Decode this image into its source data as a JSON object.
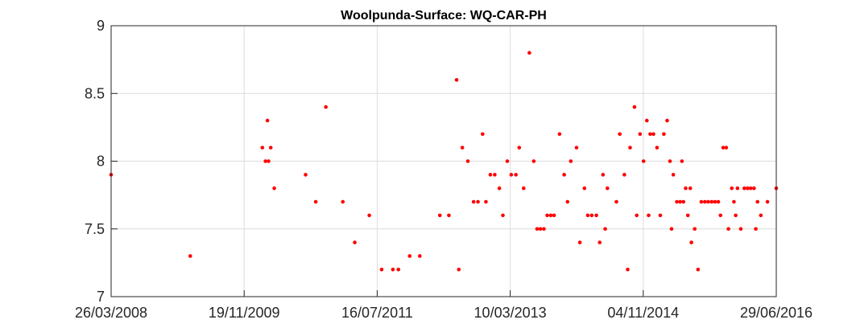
{
  "chart_data": {
    "type": "scatter",
    "title": "Woolpunda-Surface: WQ-CAR-PH",
    "xlabel": "",
    "ylabel": "",
    "x_ticks": [
      "26/03/2008",
      "19/11/2009",
      "16/07/2011",
      "10/03/2013",
      "04/11/2014",
      "29/06/2016"
    ],
    "y_ticks": [
      "7",
      "7.5",
      "8",
      "8.5",
      "9"
    ],
    "xlim": [
      "2008-03-26",
      "2016-06-29"
    ],
    "ylim": [
      7,
      9
    ],
    "grid": true,
    "marker_color": "#ff0000",
    "series": [
      {
        "points": [
          [
            "2008-03-26",
            7.9
          ],
          [
            "2009-03-20",
            7.3
          ],
          [
            "2010-02-10",
            8.1
          ],
          [
            "2010-02-24",
            8.0
          ],
          [
            "2010-03-05",
            8.3
          ],
          [
            "2010-03-10",
            8.0
          ],
          [
            "2010-03-20",
            8.1
          ],
          [
            "2010-04-05",
            7.8
          ],
          [
            "2010-08-25",
            7.9
          ],
          [
            "2010-10-10",
            7.7
          ],
          [
            "2010-11-25",
            8.4
          ],
          [
            "2011-02-10",
            7.7
          ],
          [
            "2011-04-05",
            7.4
          ],
          [
            "2011-06-10",
            7.6
          ],
          [
            "2011-08-05",
            7.2
          ],
          [
            "2011-09-25",
            7.2
          ],
          [
            "2011-10-20",
            7.2
          ],
          [
            "2011-12-10",
            7.3
          ],
          [
            "2012-01-25",
            7.3
          ],
          [
            "2012-04-25",
            7.6
          ],
          [
            "2012-06-05",
            7.6
          ],
          [
            "2012-07-10",
            8.6
          ],
          [
            "2012-07-20",
            7.2
          ],
          [
            "2012-08-05",
            8.1
          ],
          [
            "2012-08-30",
            8.0
          ],
          [
            "2012-09-25",
            7.7
          ],
          [
            "2012-10-15",
            7.7
          ],
          [
            "2012-11-05",
            8.2
          ],
          [
            "2012-11-20",
            7.7
          ],
          [
            "2012-12-10",
            7.9
          ],
          [
            "2012-12-30",
            7.9
          ],
          [
            "2013-01-20",
            7.8
          ],
          [
            "2013-02-05",
            7.6
          ],
          [
            "2013-02-25",
            8.0
          ],
          [
            "2013-03-15",
            7.9
          ],
          [
            "2013-04-05",
            7.9
          ],
          [
            "2013-04-20",
            8.1
          ],
          [
            "2013-05-10",
            7.8
          ],
          [
            "2013-06-05",
            8.8
          ],
          [
            "2013-06-25",
            8.0
          ],
          [
            "2013-07-10",
            7.5
          ],
          [
            "2013-07-25",
            7.5
          ],
          [
            "2013-08-10",
            7.5
          ],
          [
            "2013-08-25",
            7.6
          ],
          [
            "2013-09-10",
            7.6
          ],
          [
            "2013-09-25",
            7.6
          ],
          [
            "2013-10-20",
            8.2
          ],
          [
            "2013-11-10",
            7.9
          ],
          [
            "2013-11-25",
            7.7
          ],
          [
            "2013-12-10",
            8.0
          ],
          [
            "2014-01-05",
            8.1
          ],
          [
            "2014-01-20",
            7.4
          ],
          [
            "2014-02-10",
            7.8
          ],
          [
            "2014-02-25",
            7.6
          ],
          [
            "2014-03-15",
            7.6
          ],
          [
            "2014-04-05",
            7.6
          ],
          [
            "2014-04-20",
            7.4
          ],
          [
            "2014-05-05",
            7.9
          ],
          [
            "2014-05-25",
            7.8
          ],
          [
            "2014-07-05",
            7.7
          ],
          [
            "2014-07-20",
            8.2
          ],
          [
            "2014-08-10",
            7.9
          ],
          [
            "2014-09-05",
            8.1
          ],
          [
            "2014-09-25",
            8.4
          ],
          [
            "2014-10-20",
            8.2
          ],
          [
            "2014-11-05",
            8.0
          ],
          [
            "2014-11-20",
            8.3
          ],
          [
            "2014-12-05",
            8.2
          ],
          [
            "2014-12-20",
            8.2
          ],
          [
            "2015-01-05",
            8.1
          ],
          [
            "2015-01-20",
            7.6
          ],
          [
            "2015-02-05",
            8.2
          ],
          [
            "2015-02-20",
            8.3
          ],
          [
            "2015-03-05",
            8.0
          ],
          [
            "2015-03-20",
            7.9
          ],
          [
            "2015-04-05",
            7.7
          ],
          [
            "2015-04-20",
            7.7
          ],
          [
            "2015-05-05",
            7.7
          ],
          [
            "2015-05-15",
            7.8
          ],
          [
            "2015-05-25",
            7.6
          ],
          [
            "2015-06-10",
            7.4
          ],
          [
            "2015-06-25",
            7.5
          ],
          [
            "2015-07-10",
            7.2
          ],
          [
            "2015-07-25",
            7.7
          ],
          [
            "2015-08-10",
            7.7
          ],
          [
            "2015-08-25",
            7.7
          ],
          [
            "2015-09-10",
            7.7
          ],
          [
            "2015-09-25",
            7.7
          ],
          [
            "2015-10-10",
            7.7
          ],
          [
            "2015-10-20",
            7.6
          ],
          [
            "2015-11-01",
            8.1
          ],
          [
            "2015-11-15",
            8.1
          ],
          [
            "2015-11-25",
            7.5
          ],
          [
            "2015-12-10",
            7.8
          ],
          [
            "2015-12-20",
            7.7
          ],
          [
            "2016-01-05",
            7.8
          ],
          [
            "2016-01-20",
            7.5
          ],
          [
            "2016-02-05",
            7.8
          ],
          [
            "2016-02-20",
            7.8
          ],
          [
            "2016-03-05",
            7.8
          ],
          [
            "2016-03-20",
            7.8
          ],
          [
            "2016-04-05",
            7.7
          ],
          [
            "2016-04-20",
            7.6
          ],
          [
            "2016-06-29",
            7.8
          ],
          [
            "2014-05-15",
            7.5
          ],
          [
            "2014-08-25",
            7.2
          ],
          [
            "2014-10-05",
            7.6
          ],
          [
            "2014-11-28",
            7.6
          ],
          [
            "2015-03-12",
            7.5
          ],
          [
            "2015-04-28",
            8.0
          ],
          [
            "2015-06-05",
            7.8
          ],
          [
            "2015-12-28",
            7.6
          ],
          [
            "2016-03-28",
            7.5
          ],
          [
            "2016-05-20",
            7.7
          ]
        ]
      }
    ]
  }
}
